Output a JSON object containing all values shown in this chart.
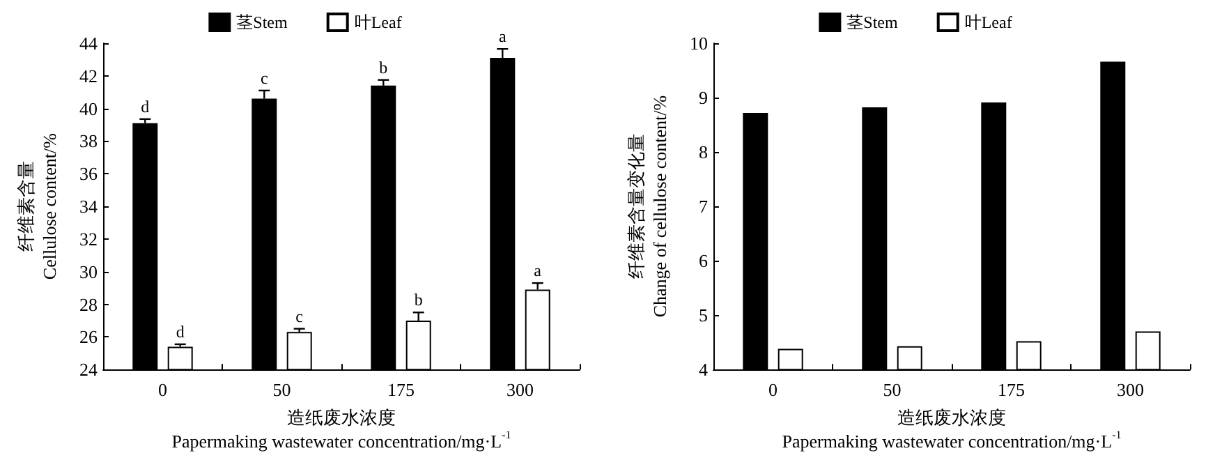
{
  "chart_data": [
    {
      "type": "bar",
      "xlabel": "造纸废水浓度\nPapermaking wastewater concentration/mg·L$^{-1}$",
      "ylabel": "纤维素含量\nCellulose content/%",
      "categories": [
        "0",
        "50",
        "175",
        "300"
      ],
      "series": [
        {
          "name": "茎Stem",
          "color": "#000000",
          "values": [
            39.1,
            40.6,
            41.4,
            43.1
          ],
          "errors": [
            0.25,
            0.5,
            0.35,
            0.55
          ],
          "value_labels": [
            "d",
            "c",
            "b",
            "a"
          ]
        },
        {
          "name": "叶Leaf",
          "color": "#ffffff",
          "values": [
            25.4,
            26.3,
            27.0,
            28.9
          ],
          "errors": [
            0.15,
            0.2,
            0.5,
            0.4
          ],
          "value_labels": [
            "d",
            "c",
            "b",
            "a"
          ]
        }
      ],
      "ylim": [
        24,
        44
      ],
      "yticks": [
        24,
        26,
        28,
        30,
        32,
        34,
        36,
        38,
        40,
        42,
        44
      ],
      "grid": false,
      "legend": "top"
    },
    {
      "type": "bar",
      "xlabel": "造纸废水浓度\nPapermaking wastewater concentration/mg·L$^{-1}$",
      "ylabel": "纤维素含量变化量\nChange of cellulose content/%",
      "categories": [
        "0",
        "50",
        "175",
        "300"
      ],
      "series": [
        {
          "name": "茎Stem",
          "color": "#000000",
          "values": [
            8.72,
            8.82,
            8.91,
            9.66
          ]
        },
        {
          "name": "叶Leaf",
          "color": "#ffffff",
          "values": [
            4.38,
            4.43,
            4.52,
            4.7
          ]
        }
      ],
      "ylim": [
        4,
        10
      ],
      "yticks": [
        4,
        5,
        6,
        7,
        8,
        9,
        10
      ],
      "grid": false,
      "legend": "top"
    }
  ]
}
